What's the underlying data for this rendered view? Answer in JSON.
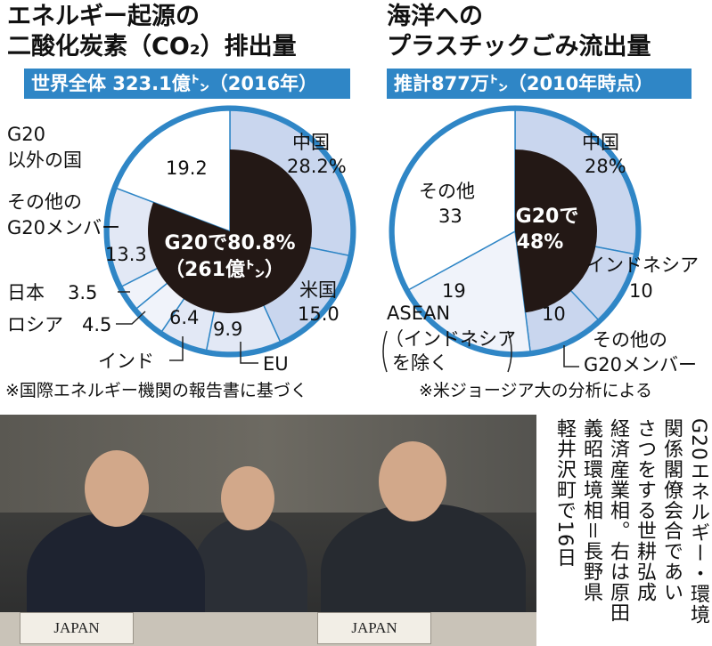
{
  "left_panel": {
    "title_line1": "エネルギー起源の",
    "title_line2": "二酸化炭素（CO₂）排出量",
    "banner": "世界全体 323.1億㌧（2016年）",
    "note": "※国際エネルギー機関の報告書に基づく"
  },
  "right_panel": {
    "title_line1": "海洋への",
    "title_line2": "プラスチックごみ流出量",
    "banner": "推計877万㌧（2010年時点）",
    "note": "※米ジョージア大の分析による"
  },
  "colors": {
    "accent_blue": "#2f86c6",
    "g20_core": "#231815",
    "slice_blue": "#c9d6ee",
    "slice_light": "#e2e8f5",
    "slice_pale": "#f0f3fa",
    "non_g20": "#ffffff"
  },
  "chart_data": [
    {
      "type": "pie",
      "title": "エネルギー起源の二酸化炭素（CO₂）排出量",
      "subtitle": "世界全体 323.1億㌧（2016年）",
      "unit": "%",
      "slices": [
        {
          "label": "中国",
          "value": 28.2,
          "display": "28.2%"
        },
        {
          "label": "米国",
          "value": 15.0,
          "display": "15.0"
        },
        {
          "label": "EU",
          "value": 9.9,
          "display": "9.9"
        },
        {
          "label": "インド",
          "value": 6.4,
          "display": "6.4"
        },
        {
          "label": "ロシア",
          "value": 4.5,
          "display": "4.5"
        },
        {
          "label": "日本",
          "value": 3.5,
          "display": "3.5"
        },
        {
          "label": "その他のG20メンバー",
          "value": 13.3,
          "display": "13.3"
        },
        {
          "label": "G20以外の国",
          "value": 19.2,
          "display": "19.2"
        }
      ],
      "center": {
        "group_label": "G20で",
        "group_value": "80.8%",
        "group_note": "（261億㌧）",
        "value": 80.8
      }
    },
    {
      "type": "pie",
      "title": "海洋へのプラスチックごみ流出量",
      "subtitle": "推計877万㌧（2010年時点）",
      "unit": "%",
      "slices": [
        {
          "label": "中国",
          "value": 28,
          "display": "28%"
        },
        {
          "label": "インドネシア",
          "value": 10,
          "display": "10"
        },
        {
          "label": "その他のG20メンバー",
          "value": 10,
          "display": "10"
        },
        {
          "label": "ASEAN（インドネシアを除く）",
          "value": 19,
          "display": "19"
        },
        {
          "label": "その他",
          "value": 33,
          "display": "33"
        }
      ],
      "center": {
        "group_label": "G20で",
        "group_value": "48%",
        "value": 48
      }
    }
  ],
  "photo": {
    "nameplate_left": "JAPAN",
    "nameplate_right": "JAPAN"
  },
  "caption": {
    "lines": [
      "G20エネルギー・環境",
      "関係閣僚会合であい",
      "さつをする世耕弘成",
      "経済産業相。右は原田",
      "義昭環境相＝長野県",
      "軽井沢町で16日"
    ]
  }
}
